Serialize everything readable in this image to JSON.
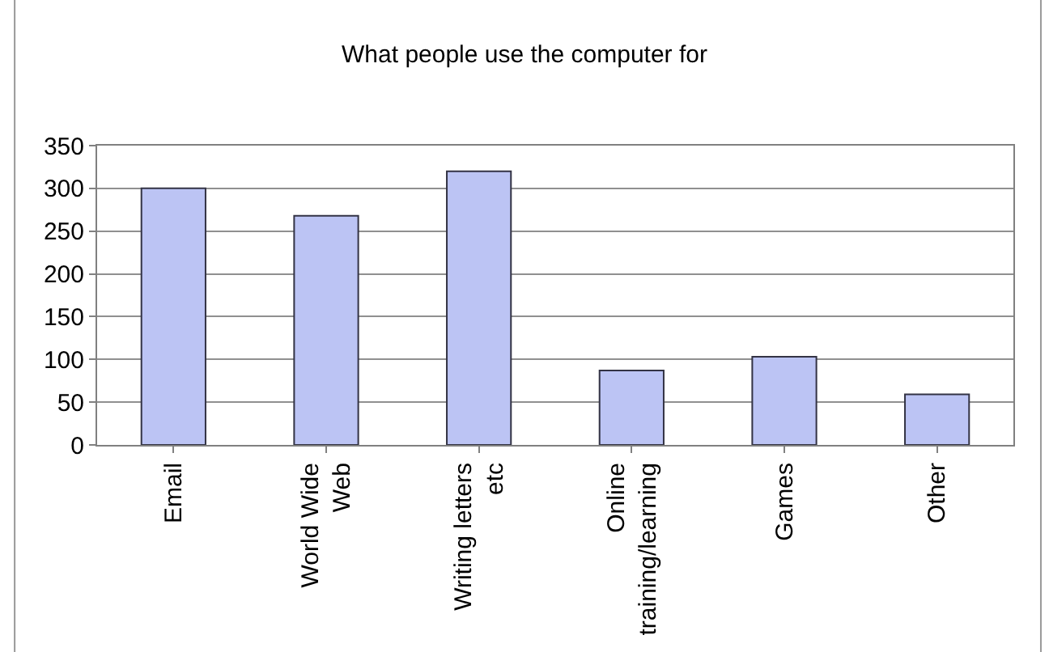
{
  "chart_data": {
    "type": "bar",
    "title": "What people use the computer for",
    "categories": [
      "Email",
      "World Wide\nWeb",
      "Writing letters\netc",
      "Online\ntraining/learning",
      "Games",
      "Other"
    ],
    "values": [
      300,
      268,
      320,
      87,
      103,
      59
    ],
    "color": "#bcc4f4",
    "ylim": [
      0,
      350
    ],
    "yticks": [
      0,
      50,
      100,
      150,
      200,
      250,
      300,
      350
    ],
    "grid": "y",
    "legend": false
  }
}
